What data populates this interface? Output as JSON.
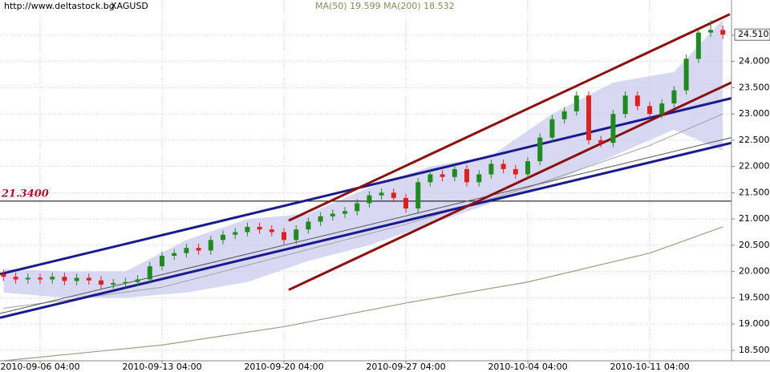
{
  "chart_data": {
    "type": "candlestick",
    "source": "http://www.deltastock.bg",
    "symbol": "XAGUSD",
    "indicator_label": "MA(50) 19.599 MA(200) 18.532",
    "x": [
      -3,
      -2,
      -1,
      0,
      1,
      2,
      3,
      4,
      5,
      6,
      7,
      8,
      9,
      10,
      11,
      12,
      13,
      14,
      15,
      16,
      17,
      18,
      19,
      20,
      21,
      22,
      23,
      24,
      25,
      26,
      27,
      28,
      29,
      30,
      31,
      32,
      33,
      34,
      35,
      36,
      37,
      38,
      39,
      40,
      41,
      42,
      43,
      44,
      45,
      46,
      47,
      48,
      49,
      50,
      51,
      52,
      53,
      54,
      55,
      56
    ],
    "open": [
      19.95,
      19.9,
      19.85,
      19.88,
      19.85,
      19.9,
      19.82,
      19.88,
      19.83,
      19.75,
      19.78,
      19.8,
      19.85,
      20.1,
      20.3,
      20.35,
      20.45,
      20.4,
      20.6,
      20.7,
      20.75,
      20.85,
      20.8,
      20.75,
      20.6,
      20.8,
      20.95,
      21.05,
      21.1,
      21.15,
      21.3,
      21.45,
      21.5,
      21.4,
      21.2,
      21.7,
      21.85,
      21.8,
      21.95,
      21.7,
      21.85,
      22.05,
      21.95,
      21.85,
      22.1,
      22.55,
      22.9,
      23.05,
      23.35,
      22.5,
      22.45,
      23.0,
      23.35,
      23.15,
      23.0,
      23.2,
      23.45,
      24.05,
      24.55,
      24.6
    ],
    "high": [
      20.03,
      19.98,
      19.96,
      19.96,
      19.98,
      19.98,
      19.96,
      19.96,
      19.91,
      19.86,
      19.88,
      19.93,
      20.18,
      20.38,
      20.43,
      20.53,
      20.53,
      20.68,
      20.78,
      20.83,
      20.93,
      20.93,
      20.88,
      20.83,
      20.88,
      21.03,
      21.13,
      21.18,
      21.23,
      21.38,
      21.53,
      21.58,
      21.58,
      21.48,
      21.78,
      21.93,
      21.93,
      22.03,
      22.03,
      21.93,
      22.13,
      22.13,
      22.03,
      22.18,
      22.63,
      22.98,
      23.13,
      23.43,
      23.43,
      22.58,
      23.08,
      23.43,
      23.43,
      23.23,
      23.28,
      23.53,
      24.13,
      24.63,
      24.78,
      24.68
    ],
    "low": [
      19.82,
      19.77,
      19.77,
      19.77,
      19.77,
      19.74,
      19.74,
      19.75,
      19.67,
      19.67,
      19.7,
      19.72,
      19.77,
      20.02,
      20.22,
      20.27,
      20.32,
      20.32,
      20.52,
      20.62,
      20.67,
      20.72,
      20.67,
      20.52,
      20.52,
      20.72,
      20.87,
      20.97,
      21.02,
      21.07,
      21.22,
      21.37,
      21.32,
      21.12,
      21.12,
      21.62,
      21.72,
      21.72,
      21.62,
      21.62,
      21.77,
      21.87,
      21.77,
      21.77,
      22.02,
      22.47,
      22.82,
      22.97,
      22.42,
      22.37,
      22.37,
      22.92,
      23.07,
      22.92,
      22.92,
      23.12,
      23.37,
      23.97,
      24.47,
      24.43
    ],
    "close": [
      19.9,
      19.85,
      19.88,
      19.85,
      19.9,
      19.82,
      19.88,
      19.83,
      19.75,
      19.78,
      19.8,
      19.85,
      20.1,
      20.3,
      20.35,
      20.45,
      20.4,
      20.6,
      20.7,
      20.75,
      20.85,
      20.8,
      20.75,
      20.6,
      20.8,
      20.95,
      21.05,
      21.1,
      21.15,
      21.3,
      21.45,
      21.5,
      21.4,
      21.2,
      21.7,
      21.85,
      21.8,
      21.95,
      21.7,
      21.85,
      22.05,
      21.95,
      21.85,
      22.1,
      22.55,
      22.9,
      23.05,
      23.35,
      22.5,
      22.45,
      23.0,
      23.35,
      23.15,
      23.0,
      23.2,
      23.45,
      24.05,
      24.55,
      24.6,
      24.51
    ],
    "up_color": "#1f8a1f",
    "down_color": "#dd2020",
    "xlim": [
      -3.29,
      56.71
    ],
    "xticks": [
      {
        "value": 0,
        "label": "2010-09-06 04:00"
      },
      {
        "value": 10,
        "label": "2010-09-13 04:00"
      },
      {
        "value": 20,
        "label": "2010-09-20 04:00"
      },
      {
        "value": 30,
        "label": "2010-09-27 04:00"
      },
      {
        "value": 40,
        "label": "2010-10-04 04:00"
      },
      {
        "value": 50,
        "label": "2010-10-11 04:00"
      }
    ],
    "ylim": [
      18.3,
      25.17
    ],
    "yticks": [
      {
        "value": 18.5,
        "label": "18.500"
      },
      {
        "value": 19,
        "label": "19.000"
      },
      {
        "value": 19.5,
        "label": "19.500"
      },
      {
        "value": 20,
        "label": "20.000"
      },
      {
        "value": 20.5,
        "label": "20.500"
      },
      {
        "value": 21,
        "label": "21.000"
      },
      {
        "value": 21.5,
        "label": "21.500"
      },
      {
        "value": 22,
        "label": "22.000"
      },
      {
        "value": 22.5,
        "label": "22.500"
      },
      {
        "value": 23,
        "label": "23.000"
      },
      {
        "value": 23.5,
        "label": "23.500"
      },
      {
        "value": 24,
        "label": "24.000"
      },
      {
        "value": 24.5,
        "label": "24.500"
      }
    ],
    "grid": true,
    "band": {
      "color": "#c8c8ee",
      "x": [
        -3,
        2,
        7,
        12,
        17,
        22,
        27,
        32,
        37,
        42,
        47,
        52,
        56
      ],
      "upper": [
        20.05,
        20.0,
        20.0,
        20.6,
        21.0,
        21.1,
        21.6,
        22.0,
        22.2,
        23.0,
        23.6,
        23.8,
        24.8
      ],
      "lower": [
        19.6,
        19.5,
        19.5,
        19.6,
        19.8,
        20.2,
        20.5,
        20.9,
        21.3,
        21.7,
        22.2,
        22.7,
        22.3
      ]
    },
    "lines": [
      {
        "color": "#a0a0a0",
        "width": 1,
        "x": [
          -3,
          10,
          20,
          30,
          40,
          50,
          56
        ],
        "values": [
          19.3,
          19.7,
          20.3,
          20.9,
          21.6,
          22.4,
          23.0
        ]
      },
      {
        "color": "#a09a88",
        "width": 1.2,
        "x": [
          -3,
          10,
          20,
          30,
          40,
          50,
          56
        ],
        "values": [
          18.3,
          18.6,
          18.95,
          19.4,
          19.8,
          20.35,
          20.85
        ]
      },
      {
        "color": "#555555",
        "width": 1,
        "x": [
          -3.29,
          56.71
        ],
        "values": [
          19.2,
          22.55
        ]
      },
      {
        "color": "#1a1a8c",
        "width": 3,
        "x": [
          -3.29,
          56.71
        ],
        "values": [
          19.95,
          23.3
        ]
      },
      {
        "color": "#1a1a8c",
        "width": 3,
        "x": [
          -3.29,
          56.71
        ],
        "values": [
          19.12,
          22.45
        ]
      },
      {
        "color": "#8b1010",
        "width": 3,
        "x": [
          20.39,
          56.58
        ],
        "values": [
          20.97,
          24.9
        ]
      },
      {
        "color": "#8b1010",
        "width": 3,
        "x": [
          20.39,
          56.71
        ],
        "values": [
          19.65,
          23.6
        ]
      }
    ],
    "level": {
      "value": 21.34,
      "label": "21.3400",
      "color": "#b01030"
    },
    "last": {
      "value": 24.51,
      "label": "24.510"
    }
  }
}
